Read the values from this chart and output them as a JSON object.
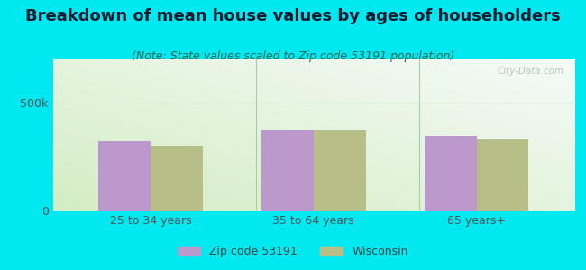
{
  "title": "Breakdown of mean house values by ages of householders",
  "subtitle": "(Note: State values scaled to Zip code 53191 population)",
  "categories": [
    "25 to 34 years",
    "35 to 64 years",
    "65 years+"
  ],
  "zip_values": [
    320000,
    375000,
    345000
  ],
  "state_values": [
    300000,
    370000,
    330000
  ],
  "zip_color": "#bb99cc",
  "state_color": "#b8be88",
  "background_outer": "#00e8f0",
  "background_chart_bottom_left": "#d4edc4",
  "background_chart_top_right": "#f5fbf8",
  "ylim": [
    0,
    700000
  ],
  "yticks": [
    0,
    500000
  ],
  "ytick_labels": [
    "0",
    "500k"
  ],
  "legend_zip_label": "Zip code 53191",
  "legend_state_label": "Wisconsin",
  "bar_width": 0.32,
  "title_fontsize": 13,
  "subtitle_fontsize": 9,
  "tick_fontsize": 9,
  "legend_fontsize": 9,
  "grid_color": "#ccddcc",
  "divider_color": "#aaccaa"
}
